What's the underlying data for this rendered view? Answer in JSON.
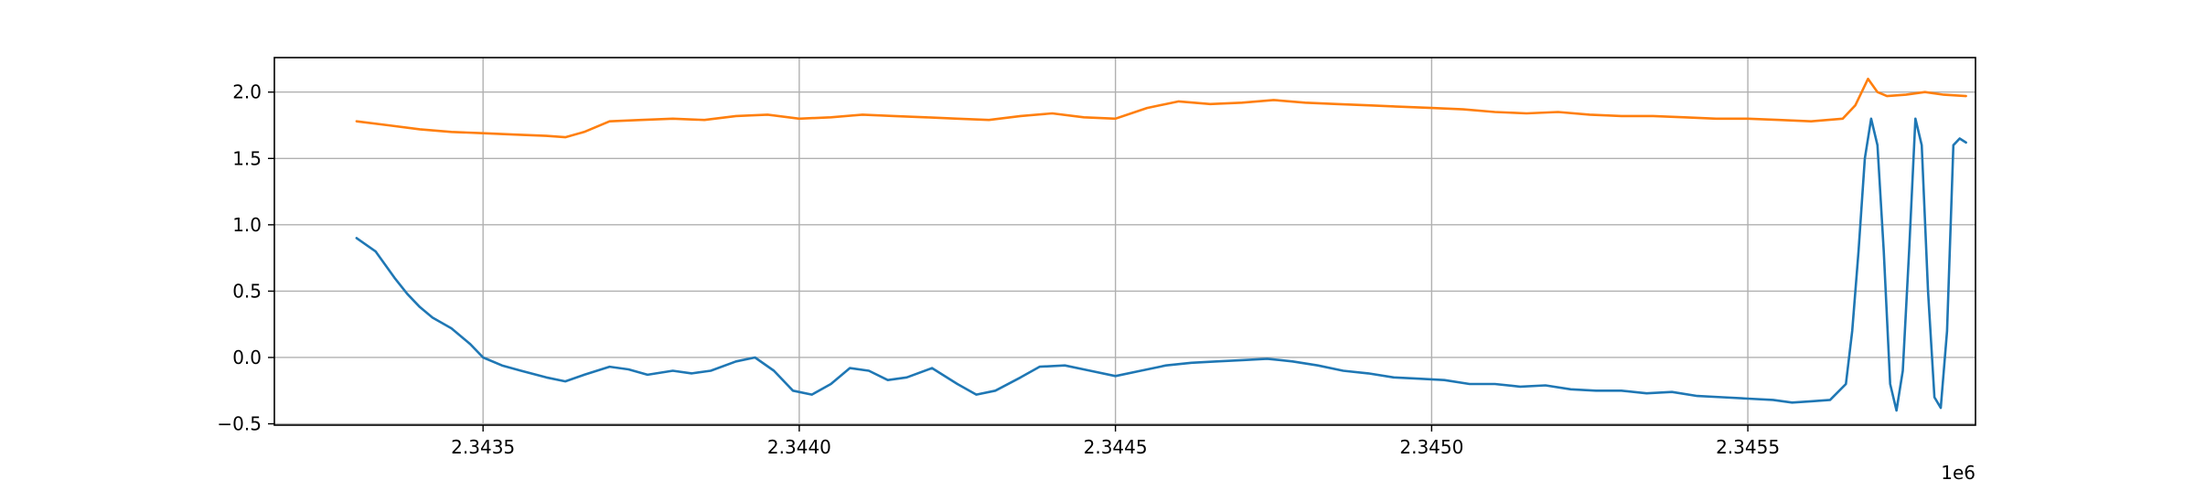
{
  "chart_data": {
    "type": "line",
    "title": "",
    "xlabel": "",
    "ylabel": "",
    "x_offset_label": "1e6",
    "xlim": [
      2343170,
      2345860
    ],
    "ylim": [
      -0.51,
      2.26
    ],
    "grid": true,
    "legend": "none",
    "x_ticks": [
      {
        "value": 2343500,
        "label": "2.3435"
      },
      {
        "value": 2344000,
        "label": "2.3440"
      },
      {
        "value": 2344500,
        "label": "2.3445"
      },
      {
        "value": 2345000,
        "label": "2.3450"
      },
      {
        "value": 2345500,
        "label": "2.3455"
      }
    ],
    "y_ticks": [
      {
        "value": -0.5,
        "label": "−0.5"
      },
      {
        "value": 0.0,
        "label": "0.0"
      },
      {
        "value": 0.5,
        "label": "0.5"
      },
      {
        "value": 1.0,
        "label": "1.0"
      },
      {
        "value": 1.5,
        "label": "1.5"
      },
      {
        "value": 2.0,
        "label": "2.0"
      }
    ],
    "series": [
      {
        "color": "#1f77b4",
        "x": [
          2343300,
          2343330,
          2343360,
          2343380,
          2343400,
          2343420,
          2343450,
          2343480,
          2343500,
          2343530,
          2343560,
          2343600,
          2343630,
          2343660,
          2343700,
          2343730,
          2343760,
          2343800,
          2343830,
          2343860,
          2343900,
          2343930,
          2343960,
          2343990,
          2344020,
          2344050,
          2344080,
          2344110,
          2344140,
          2344170,
          2344210,
          2344250,
          2344280,
          2344310,
          2344350,
          2344380,
          2344420,
          2344460,
          2344500,
          2344540,
          2344580,
          2344620,
          2344660,
          2344700,
          2344740,
          2344780,
          2344820,
          2344860,
          2344900,
          2344940,
          2344980,
          2345020,
          2345060,
          2345100,
          2345140,
          2345180,
          2345220,
          2345260,
          2345300,
          2345340,
          2345380,
          2345420,
          2345460,
          2345500,
          2345540,
          2345570,
          2345600,
          2345630,
          2345655,
          2345665,
          2345675,
          2345685,
          2345695,
          2345705,
          2345715,
          2345725,
          2345735,
          2345745,
          2345755,
          2345765,
          2345775,
          2345785,
          2345795,
          2345805,
          2345815,
          2345825,
          2345835,
          2345845
        ],
        "values": [
          0.9,
          0.8,
          0.6,
          0.48,
          0.38,
          0.3,
          0.22,
          0.1,
          0.0,
          -0.06,
          -0.1,
          -0.15,
          -0.18,
          -0.13,
          -0.07,
          -0.09,
          -0.13,
          -0.1,
          -0.12,
          -0.1,
          -0.03,
          0.0,
          -0.1,
          -0.25,
          -0.28,
          -0.2,
          -0.08,
          -0.1,
          -0.17,
          -0.15,
          -0.08,
          -0.2,
          -0.28,
          -0.25,
          -0.15,
          -0.07,
          -0.06,
          -0.1,
          -0.14,
          -0.1,
          -0.06,
          -0.04,
          -0.03,
          -0.02,
          -0.01,
          -0.03,
          -0.06,
          -0.1,
          -0.12,
          -0.15,
          -0.16,
          -0.17,
          -0.2,
          -0.2,
          -0.22,
          -0.21,
          -0.24,
          -0.25,
          -0.25,
          -0.27,
          -0.26,
          -0.29,
          -0.3,
          -0.31,
          -0.32,
          -0.34,
          -0.33,
          -0.32,
          -0.2,
          0.2,
          0.8,
          1.5,
          1.8,
          1.6,
          0.8,
          -0.2,
          -0.4,
          -0.1,
          0.8,
          1.8,
          1.6,
          0.5,
          -0.3,
          -0.38,
          0.2,
          1.6,
          1.65,
          1.62
        ]
      },
      {
        "color": "#ff7f0e",
        "x": [
          2343300,
          2343350,
          2343400,
          2343450,
          2343500,
          2343550,
          2343600,
          2343630,
          2343660,
          2343700,
          2343750,
          2343800,
          2343850,
          2343900,
          2343950,
          2344000,
          2344050,
          2344100,
          2344150,
          2344200,
          2344250,
          2344300,
          2344350,
          2344400,
          2344450,
          2344500,
          2344550,
          2344600,
          2344650,
          2344700,
          2344750,
          2344800,
          2344850,
          2344900,
          2344950,
          2345000,
          2345050,
          2345100,
          2345150,
          2345200,
          2345250,
          2345300,
          2345350,
          2345400,
          2345450,
          2345500,
          2345550,
          2345600,
          2345650,
          2345670,
          2345690,
          2345705,
          2345720,
          2345750,
          2345780,
          2345810,
          2345845
        ],
        "values": [
          1.78,
          1.75,
          1.72,
          1.7,
          1.69,
          1.68,
          1.67,
          1.66,
          1.7,
          1.78,
          1.79,
          1.8,
          1.79,
          1.82,
          1.83,
          1.8,
          1.81,
          1.83,
          1.82,
          1.81,
          1.8,
          1.79,
          1.82,
          1.84,
          1.81,
          1.8,
          1.88,
          1.93,
          1.91,
          1.92,
          1.94,
          1.92,
          1.91,
          1.9,
          1.89,
          1.88,
          1.87,
          1.85,
          1.84,
          1.85,
          1.83,
          1.82,
          1.82,
          1.81,
          1.8,
          1.8,
          1.79,
          1.78,
          1.8,
          1.9,
          2.1,
          2.0,
          1.97,
          1.98,
          2.0,
          1.98,
          1.97
        ]
      }
    ]
  }
}
